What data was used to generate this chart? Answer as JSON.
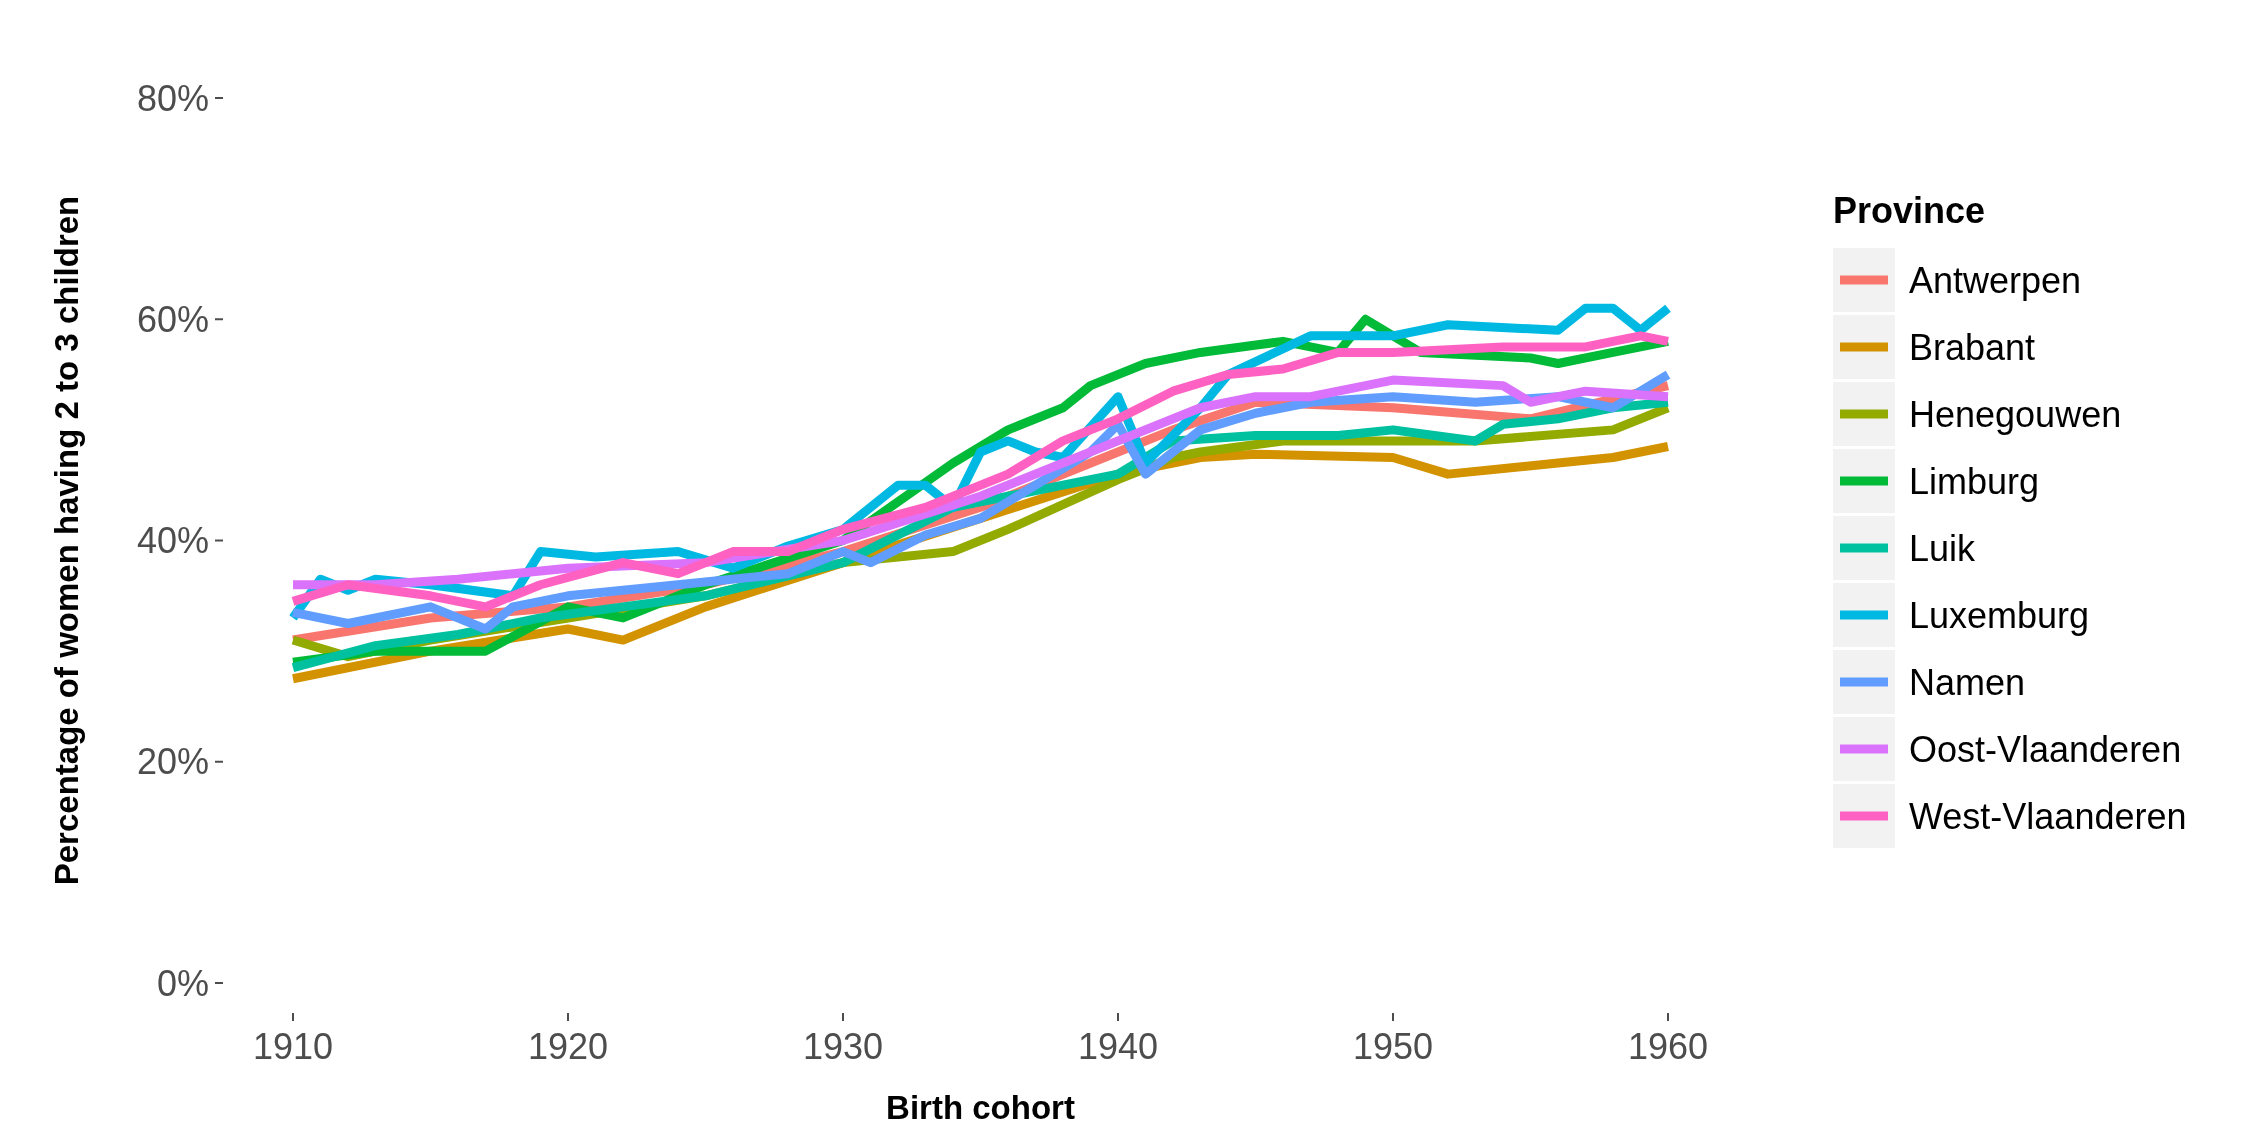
{
  "chart_data": {
    "type": "line",
    "xlabel": "Birth cohort",
    "ylabel": "Percentage of women having 2 to 3 children",
    "legend_title": "Province",
    "legend": "right",
    "grid": false,
    "marker": "none",
    "line_style": "solid",
    "xlim": [
      1910,
      1960
    ],
    "xticks": [
      1910,
      1920,
      1930,
      1940,
      1950,
      1960
    ],
    "ylim": [
      0,
      80
    ],
    "yticks": [
      {
        "value": 0,
        "label": "0%"
      },
      {
        "value": 20,
        "label": "20%"
      },
      {
        "value": 40,
        "label": "40%"
      },
      {
        "value": 60,
        "label": "60%"
      },
      {
        "value": 80,
        "label": "80%"
      }
    ],
    "series": [
      {
        "name": "Antwerpen",
        "color": "#f8766d",
        "x": [
          1910,
          1915,
          1920,
          1925,
          1930,
          1935,
          1940,
          1942,
          1945,
          1950,
          1955,
          1960
        ],
        "values": [
          31,
          33,
          34,
          36,
          39,
          43,
          48,
          50,
          52.5,
          52,
          51,
          54
        ]
      },
      {
        "name": "Brabant",
        "color": "#d39200",
        "x": [
          1910,
          1915,
          1920,
          1922,
          1925,
          1930,
          1935,
          1940,
          1943,
          1945,
          1950,
          1952,
          1956,
          1958,
          1960
        ],
        "values": [
          27.5,
          30,
          32,
          31,
          34,
          38,
          42,
          46,
          47.5,
          47.8,
          47.5,
          46,
          47,
          47.5,
          48.5
        ]
      },
      {
        "name": "Henegouwen",
        "color": "#93aa00",
        "x": [
          1910,
          1912,
          1915,
          1920,
          1925,
          1930,
          1934,
          1936,
          1940,
          1942,
          1943,
          1946,
          1950,
          1953,
          1958,
          1960
        ],
        "values": [
          31,
          29.5,
          31,
          33,
          35,
          38,
          39,
          41,
          45.5,
          47.5,
          48,
          49,
          49,
          49,
          50,
          52
        ]
      },
      {
        "name": "Limburg",
        "color": "#00ba38",
        "x": [
          1910,
          1913,
          1917,
          1920,
          1922,
          1925,
          1930,
          1934,
          1936,
          1938,
          1939,
          1941,
          1943,
          1946,
          1948,
          1949,
          1951,
          1955,
          1956,
          1958,
          1960
        ],
        "values": [
          29,
          30,
          30,
          34,
          33,
          36,
          40,
          47,
          50,
          52,
          54,
          56,
          57,
          58,
          57,
          60,
          57,
          56.5,
          56,
          57,
          58
        ]
      },
      {
        "name": "Luik",
        "color": "#00c19f",
        "x": [
          1910,
          1913,
          1916,
          1919,
          1922,
          1925,
          1930,
          1934,
          1936,
          1938,
          1940,
          1942,
          1945,
          1948,
          1950,
          1953,
          1954,
          1956,
          1958,
          1960
        ],
        "values": [
          28.5,
          30.5,
          31.5,
          33,
          34,
          35,
          38,
          43,
          44,
          45,
          46,
          49,
          49.5,
          49.5,
          50,
          49,
          50.5,
          51,
          52,
          52.5
        ]
      },
      {
        "name": "Luxemburg",
        "color": "#00b9e3",
        "x": [
          1910,
          1911,
          1912,
          1913,
          1915,
          1918,
          1919,
          1921,
          1924,
          1926,
          1928,
          1930,
          1932,
          1933,
          1934,
          1935,
          1936,
          1937,
          1938,
          1940,
          1941,
          1943,
          1944,
          1947,
          1950,
          1952,
          1956,
          1957,
          1958,
          1959,
          1960
        ],
        "values": [
          33,
          36.5,
          35.5,
          36.5,
          36,
          35,
          39,
          38.5,
          39,
          37.5,
          39.5,
          41,
          45,
          45,
          43,
          48,
          49,
          48,
          47.5,
          53,
          47,
          52,
          55,
          58.5,
          58.5,
          59.5,
          59,
          61,
          61,
          59,
          61
        ]
      },
      {
        "name": "Namen",
        "color": "#619cff",
        "x": [
          1910,
          1912,
          1915,
          1917,
          1918,
          1920,
          1924,
          1928,
          1930,
          1931,
          1933,
          1935,
          1937,
          1939,
          1940,
          1941,
          1943,
          1945,
          1947,
          1950,
          1953,
          1956,
          1958,
          1960
        ],
        "values": [
          33.5,
          32.5,
          34,
          32,
          34,
          35,
          36,
          37,
          39,
          38,
          40.5,
          42,
          45,
          48,
          50.5,
          46,
          50,
          51.5,
          52.5,
          53,
          52.5,
          53,
          52,
          55
        ]
      },
      {
        "name": "Oost-Vlaanderen",
        "color": "#db72fb",
        "x": [
          1910,
          1913,
          1916,
          1918,
          1920,
          1925,
          1930,
          1935,
          1940,
          1943,
          1945,
          1947,
          1950,
          1954,
          1955,
          1957,
          1960
        ],
        "values": [
          36,
          36,
          36.5,
          37,
          37.5,
          38,
          40,
          44,
          49,
          52,
          53,
          53,
          54.5,
          54,
          52.5,
          53.5,
          53
        ]
      },
      {
        "name": "West-Vlaanderen",
        "color": "#ff61c3",
        "x": [
          1910,
          1912,
          1915,
          1917,
          1919,
          1922,
          1924,
          1926,
          1928,
          1930,
          1933,
          1936,
          1938,
          1940,
          1942,
          1944,
          1946,
          1948,
          1950,
          1954,
          1957,
          1959,
          1960
        ],
        "values": [
          34.5,
          36,
          35,
          34,
          36,
          38,
          37,
          39,
          39,
          41,
          43,
          46,
          49,
          51,
          53.5,
          55,
          55.5,
          57,
          57,
          57.5,
          57.5,
          58.5,
          58
        ]
      }
    ]
  }
}
